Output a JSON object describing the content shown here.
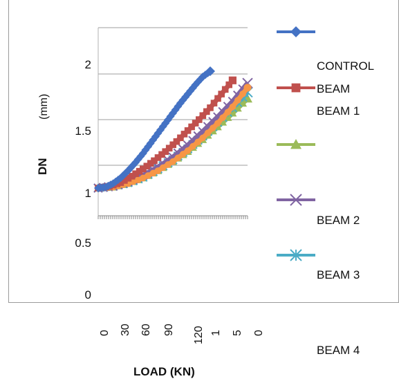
{
  "chart_data": {
    "type": "line",
    "xlabel": "LOAD (KN)",
    "ylabel": "DN",
    "ylabel_unit": "(mm)",
    "ylim": [
      0,
      2
    ],
    "yticks": [
      "0",
      "0.5",
      "1",
      "1.5",
      "2"
    ],
    "xticks": [
      "0",
      "30",
      "60",
      "90",
      "120",
      "1",
      "5",
      "0"
    ],
    "grid": true,
    "legend_position": "right",
    "legend_texts": [
      "CONTROL",
      "BEAM",
      "BEAM 1",
      "BEAM 2",
      "BEAM 3",
      "BEAM 4"
    ],
    "series": [
      {
        "color": "#4472C4",
        "marker": "diamond-icon",
        "x": [
          0,
          10,
          20,
          30,
          40,
          50,
          60,
          70,
          80,
          90,
          100,
          110,
          120,
          130,
          140,
          150
        ],
        "y": [
          0.75,
          0.76,
          0.8,
          0.86,
          0.94,
          1.03,
          1.13,
          1.24,
          1.35,
          1.46,
          1.57,
          1.68,
          1.78,
          1.88,
          1.97,
          2.03
        ]
      },
      {
        "color": "#C0504D",
        "marker": "square-icon",
        "x": [
          0,
          15,
          30,
          45,
          60,
          75,
          90,
          105,
          120,
          135,
          150,
          165,
          180
        ],
        "y": [
          0.75,
          0.77,
          0.81,
          0.88,
          0.96,
          1.05,
          1.15,
          1.26,
          1.38,
          1.5,
          1.63,
          1.78,
          1.93
        ]
      },
      {
        "color": "#9BBB59",
        "marker": "triangle-icon",
        "x": [
          0,
          20,
          40,
          60,
          80,
          100,
          120,
          140,
          160,
          180,
          200
        ],
        "y": [
          0.75,
          0.76,
          0.8,
          0.86,
          0.94,
          1.04,
          1.15,
          1.28,
          1.42,
          1.57,
          1.73
        ]
      },
      {
        "color": "#8064A2",
        "marker": "x-icon",
        "x": [
          0,
          20,
          40,
          60,
          80,
          100,
          120,
          140,
          160,
          180,
          200
        ],
        "y": [
          0.75,
          0.77,
          0.82,
          0.89,
          0.98,
          1.09,
          1.22,
          1.37,
          1.53,
          1.7,
          1.9
        ]
      },
      {
        "color": "#4BACC6",
        "marker": "asterisk-icon",
        "x": [
          0,
          20,
          40,
          60,
          80,
          100,
          120,
          140,
          160,
          180,
          200
        ],
        "y": [
          0.75,
          0.77,
          0.81,
          0.87,
          0.96,
          1.06,
          1.18,
          1.32,
          1.47,
          1.63,
          1.8
        ]
      },
      {
        "color": "#F79646",
        "marker": "circle-icon",
        "x": [
          0,
          20,
          40,
          60,
          80,
          100,
          120,
          140,
          160,
          180,
          200
        ],
        "y": [
          0.75,
          0.76,
          0.8,
          0.86,
          0.94,
          1.04,
          1.16,
          1.3,
          1.46,
          1.64,
          1.85
        ]
      }
    ]
  }
}
